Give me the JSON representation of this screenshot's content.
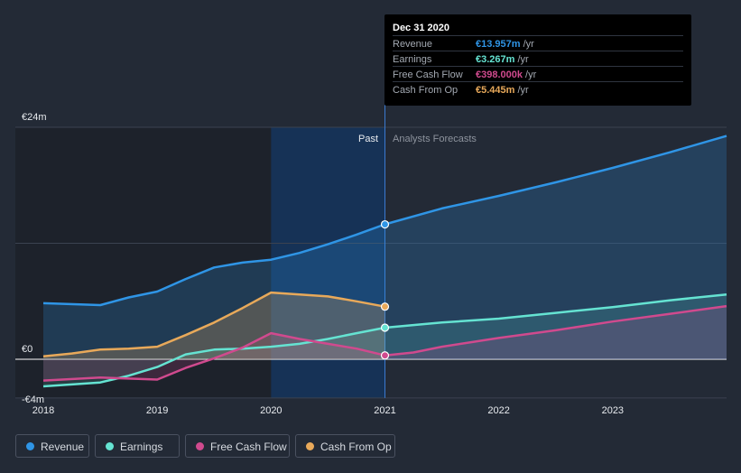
{
  "tooltip": {
    "date": "Dec 31 2020",
    "rows": [
      {
        "label": "Revenue",
        "value": "€13.957m",
        "unit": " /yr",
        "color": "#2f95e6"
      },
      {
        "label": "Earnings",
        "value": "€3.267m",
        "unit": " /yr",
        "color": "#65e3d2"
      },
      {
        "label": "Free Cash Flow",
        "value": "€398.000k",
        "unit": " /yr",
        "color": "#d04a8e"
      },
      {
        "label": "Cash From Op",
        "value": "€5.445m",
        "unit": " /yr",
        "color": "#e8a95a"
      }
    ]
  },
  "legend": [
    {
      "label": "Revenue",
      "color": "#2f95e6"
    },
    {
      "label": "Earnings",
      "color": "#65e3d2"
    },
    {
      "label": "Free Cash Flow",
      "color": "#d04a8e"
    },
    {
      "label": "Cash From Op",
      "color": "#e8a95a"
    }
  ],
  "chart_data": {
    "type": "line",
    "y_axis_labels": [
      "€24m",
      "€0",
      "-€4m"
    ],
    "ylim": [
      -4,
      24
    ],
    "xlim": [
      2018,
      2024
    ],
    "x_ticks": [
      "2018",
      "2019",
      "2020",
      "2021",
      "2022",
      "2023"
    ],
    "past_label": "Past",
    "forecast_label": "Analysts Forecasts",
    "divider_x": 2021,
    "highlight_range": [
      2020,
      2021
    ],
    "grid": true,
    "series": [
      {
        "name": "Revenue",
        "color": "#2f95e6",
        "points": [
          [
            2018,
            5.8
          ],
          [
            2018.5,
            5.6
          ],
          [
            2018.75,
            6.4
          ],
          [
            2019,
            7.0
          ],
          [
            2019.25,
            8.3
          ],
          [
            2019.5,
            9.5
          ],
          [
            2019.75,
            10.0
          ],
          [
            2020,
            10.3
          ],
          [
            2020.25,
            11.0
          ],
          [
            2020.5,
            11.9
          ],
          [
            2020.75,
            12.9
          ],
          [
            2021,
            13.957
          ],
          [
            2021.5,
            15.6
          ],
          [
            2022,
            16.9
          ],
          [
            2022.5,
            18.3
          ],
          [
            2023,
            19.8
          ],
          [
            2023.5,
            21.4
          ],
          [
            2024,
            23.1
          ]
        ]
      },
      {
        "name": "Earnings",
        "color": "#65e3d2",
        "points": [
          [
            2018,
            -2.8
          ],
          [
            2018.5,
            -2.4
          ],
          [
            2018.75,
            -1.7
          ],
          [
            2019,
            -0.8
          ],
          [
            2019.25,
            0.5
          ],
          [
            2019.5,
            1.0
          ],
          [
            2019.75,
            1.1
          ],
          [
            2020,
            1.3
          ],
          [
            2020.25,
            1.6
          ],
          [
            2020.5,
            2.1
          ],
          [
            2020.75,
            2.7
          ],
          [
            2021,
            3.267
          ],
          [
            2021.5,
            3.8
          ],
          [
            2022,
            4.2
          ],
          [
            2022.5,
            4.8
          ],
          [
            2023,
            5.4
          ],
          [
            2023.5,
            6.1
          ],
          [
            2024,
            6.7
          ]
        ]
      },
      {
        "name": "Free Cash Flow",
        "color": "#d04a8e",
        "points": [
          [
            2018,
            -2.2
          ],
          [
            2018.5,
            -1.9
          ],
          [
            2018.75,
            -2.0
          ],
          [
            2019,
            -2.1
          ],
          [
            2019.25,
            -0.9
          ],
          [
            2019.5,
            0.1
          ],
          [
            2019.75,
            1.2
          ],
          [
            2020,
            2.7
          ],
          [
            2020.25,
            2.1
          ],
          [
            2020.5,
            1.6
          ],
          [
            2020.75,
            1.1
          ],
          [
            2021,
            0.398
          ],
          [
            2021.25,
            0.7
          ],
          [
            2021.5,
            1.3
          ],
          [
            2022,
            2.2
          ],
          [
            2022.5,
            3.0
          ],
          [
            2023,
            3.9
          ],
          [
            2023.5,
            4.7
          ],
          [
            2024,
            5.5
          ]
        ]
      },
      {
        "name": "Cash From Op",
        "color": "#e8a95a",
        "points": [
          [
            2018,
            0.3
          ],
          [
            2018.25,
            0.6
          ],
          [
            2018.5,
            1.0
          ],
          [
            2018.75,
            1.1
          ],
          [
            2019,
            1.3
          ],
          [
            2019.25,
            2.5
          ],
          [
            2019.5,
            3.8
          ],
          [
            2019.75,
            5.3
          ],
          [
            2020,
            6.9
          ],
          [
            2020.25,
            6.7
          ],
          [
            2020.5,
            6.5
          ],
          [
            2020.75,
            6.0
          ],
          [
            2021,
            5.445
          ]
        ]
      }
    ]
  }
}
